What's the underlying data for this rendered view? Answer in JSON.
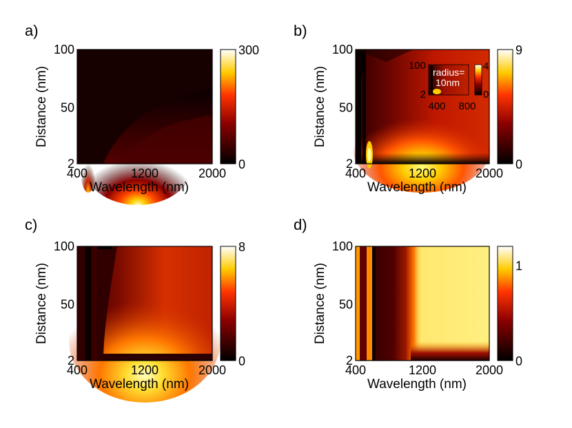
{
  "chart_data": [
    {
      "type": "heatmap",
      "panel_label": "a)",
      "xlabel": "Wavelength (nm)",
      "ylabel": "Distance (nm)",
      "xlim": [
        400,
        2000
      ],
      "ylim": [
        2,
        100
      ],
      "x_ticks": [
        "400",
        "1200",
        "2000"
      ],
      "y_ticks": [
        "2",
        "50",
        "100"
      ],
      "colorbar": {
        "min": 0,
        "max": 300,
        "ticks": [
          "0",
          "300"
        ]
      }
    },
    {
      "type": "heatmap",
      "panel_label": "b)",
      "xlabel": "Wavelength (nm)",
      "ylabel": "Distance (nm)",
      "xlim": [
        400,
        2000
      ],
      "ylim": [
        2,
        100
      ],
      "x_ticks": [
        "400",
        "1200",
        "2000"
      ],
      "y_ticks": [
        "2",
        "50",
        "100"
      ],
      "colorbar": {
        "min": 0,
        "max": 9,
        "ticks": [
          "0",
          "9"
        ]
      },
      "inset": {
        "annotation_line1": "radius=",
        "annotation_line2": "10nm",
        "x_ticks": [
          "400",
          "800"
        ],
        "y_ticks": [
          "2",
          "100"
        ],
        "colorbar_ticks": [
          "0",
          "4"
        ]
      }
    },
    {
      "type": "heatmap",
      "panel_label": "c)",
      "xlabel": "Wavelength (nm)",
      "ylabel": "Distance (nm)",
      "xlim": [
        400,
        2000
      ],
      "ylim": [
        2,
        100
      ],
      "x_ticks": [
        "400",
        "1200",
        "2000"
      ],
      "y_ticks": [
        "2",
        "50",
        "100"
      ],
      "colorbar": {
        "min": 0,
        "max": 8,
        "ticks": [
          "0",
          "8"
        ]
      }
    },
    {
      "type": "heatmap",
      "panel_label": "d)",
      "xlabel": "Wavelength (nm)",
      "ylabel": "Distance (nm)",
      "xlim": [
        400,
        2000
      ],
      "ylim": [
        2,
        100
      ],
      "x_ticks": [
        "400",
        "1200",
        "2000"
      ],
      "y_ticks": [
        "2",
        "50",
        "100"
      ],
      "colorbar": {
        "min": 0,
        "max": 1.2,
        "ticks": [
          "0",
          "1"
        ]
      }
    }
  ]
}
